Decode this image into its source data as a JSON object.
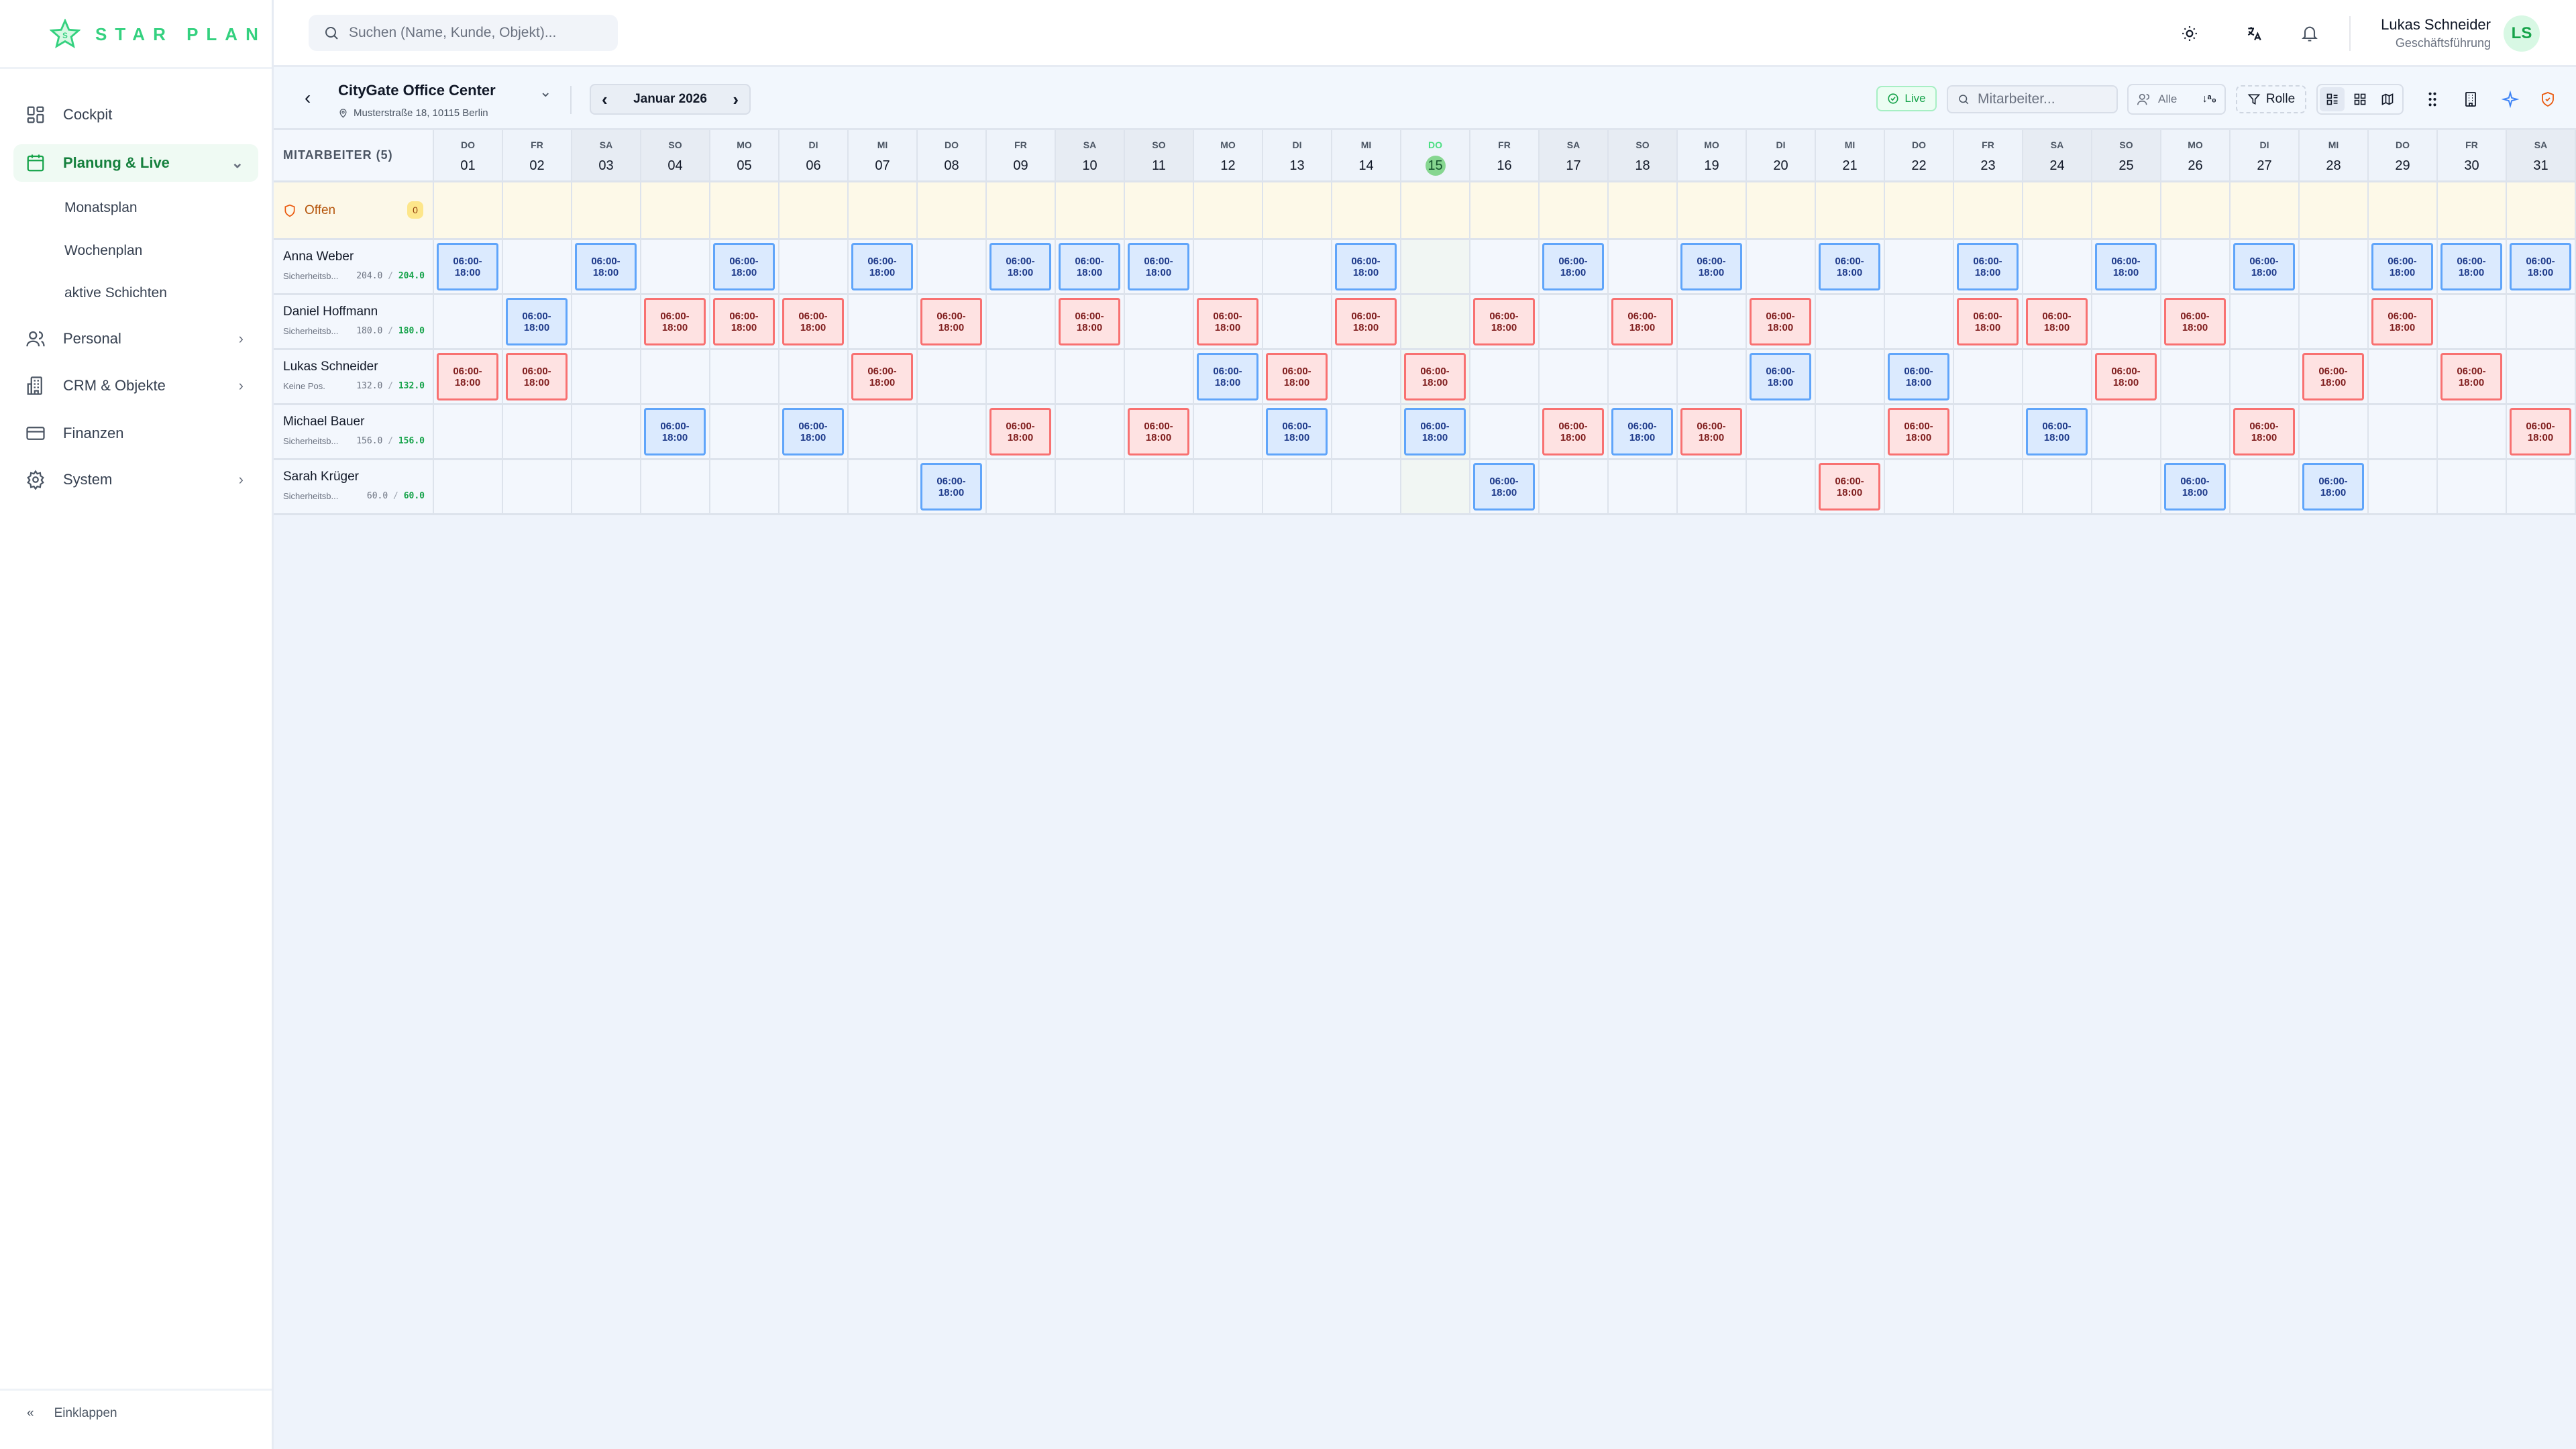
{
  "app": {
    "name": "STAR PLAN"
  },
  "search": {
    "placeholder": "Suchen (Name, Kunde, Objekt)..."
  },
  "sidebar": {
    "items": [
      {
        "label": "Cockpit",
        "icon": "dashboard-icon"
      },
      {
        "label": "Planung & Live",
        "icon": "calendar-icon",
        "active": true,
        "sub": [
          "Monatsplan",
          "Wochenplan",
          "aktive Schichten"
        ]
      },
      {
        "label": "Personal",
        "icon": "users-icon"
      },
      {
        "label": "CRM & Objekte",
        "icon": "building-icon"
      },
      {
        "label": "Finanzen",
        "icon": "credit-card-icon"
      },
      {
        "label": "System",
        "icon": "gear-icon"
      }
    ],
    "collapse": "Einklappen"
  },
  "user": {
    "name": "Lukas Schneider",
    "role": "Geschäftsführung",
    "initials": "LS"
  },
  "toolbar": {
    "object": "CityGate Office Center",
    "address": "Musterstraße 18, 10115 Berlin",
    "month": "Januar 2026",
    "live": "Live",
    "employee_search_placeholder": "Mitarbeiter...",
    "group_filter": "Alle",
    "role_filter": "Rolle"
  },
  "grid": {
    "header": "MITARBEITER (5)",
    "today": 15,
    "shift_label": "06:00-18:00",
    "colors": {
      "blue": "#dbeafe",
      "red": "#fee2e2"
    },
    "days": [
      {
        "wd": "DO",
        "d": "01"
      },
      {
        "wd": "FR",
        "d": "02"
      },
      {
        "wd": "SA",
        "d": "03"
      },
      {
        "wd": "SO",
        "d": "04"
      },
      {
        "wd": "MO",
        "d": "05"
      },
      {
        "wd": "DI",
        "d": "06"
      },
      {
        "wd": "MI",
        "d": "07"
      },
      {
        "wd": "DO",
        "d": "08"
      },
      {
        "wd": "FR",
        "d": "09"
      },
      {
        "wd": "SA",
        "d": "10"
      },
      {
        "wd": "SO",
        "d": "11"
      },
      {
        "wd": "MO",
        "d": "12"
      },
      {
        "wd": "DI",
        "d": "13"
      },
      {
        "wd": "MI",
        "d": "14"
      },
      {
        "wd": "DO",
        "d": "15"
      },
      {
        "wd": "FR",
        "d": "16"
      },
      {
        "wd": "SA",
        "d": "17"
      },
      {
        "wd": "SO",
        "d": "18"
      },
      {
        "wd": "MO",
        "d": "19"
      },
      {
        "wd": "DI",
        "d": "20"
      },
      {
        "wd": "MI",
        "d": "21"
      },
      {
        "wd": "DO",
        "d": "22"
      },
      {
        "wd": "FR",
        "d": "23"
      },
      {
        "wd": "SA",
        "d": "24"
      },
      {
        "wd": "SO",
        "d": "25"
      },
      {
        "wd": "MO",
        "d": "26"
      },
      {
        "wd": "DI",
        "d": "27"
      },
      {
        "wd": "MI",
        "d": "28"
      },
      {
        "wd": "DO",
        "d": "29"
      },
      {
        "wd": "FR",
        "d": "30"
      },
      {
        "wd": "SA",
        "d": "31"
      }
    ],
    "open": {
      "label": "Offen",
      "count": "0"
    },
    "employees": [
      {
        "name": "Anna Weber",
        "position": "Sicherheitsb...",
        "planned": "204.0",
        "target": "204.0",
        "shifts": {
          "1": "blue",
          "3": "blue",
          "5": "blue",
          "7": "blue",
          "9": "blue",
          "10": "blue",
          "11": "blue",
          "14": "blue",
          "17": "blue",
          "19": "blue",
          "21": "blue",
          "23": "blue",
          "25": "blue",
          "27": "blue",
          "29": "blue",
          "30": "blue",
          "31": "blue"
        }
      },
      {
        "name": "Daniel Hoffmann",
        "position": "Sicherheitsb...",
        "planned": "180.0",
        "target": "180.0",
        "shifts": {
          "2": "blue",
          "4": "red",
          "5": "red",
          "6": "red",
          "8": "red",
          "10": "red",
          "12": "red",
          "14": "red",
          "16": "red",
          "18": "red",
          "20": "red",
          "23": "red",
          "24": "red",
          "26": "red",
          "29": "red"
        }
      },
      {
        "name": "Lukas Schneider",
        "position": "Keine Pos.",
        "planned": "132.0",
        "target": "132.0",
        "shifts": {
          "1": "red",
          "2": "red",
          "7": "red",
          "12": "blue",
          "13": "red",
          "15": "red",
          "20": "blue",
          "22": "blue",
          "25": "red",
          "28": "red",
          "30": "red"
        }
      },
      {
        "name": "Michael Bauer",
        "position": "Sicherheitsb...",
        "planned": "156.0",
        "target": "156.0",
        "shifts": {
          "4": "blue",
          "6": "blue",
          "9": "red",
          "11": "red",
          "13": "blue",
          "15": "blue",
          "17": "red",
          "18": "blue",
          "19": "red",
          "22": "red",
          "24": "blue",
          "27": "red",
          "31": "red"
        }
      },
      {
        "name": "Sarah Krüger",
        "position": "Sicherheitsb...",
        "planned": "60.0",
        "target": "60.0",
        "shifts": {
          "8": "blue",
          "16": "blue",
          "21": "red",
          "26": "blue",
          "28": "blue"
        }
      }
    ]
  }
}
